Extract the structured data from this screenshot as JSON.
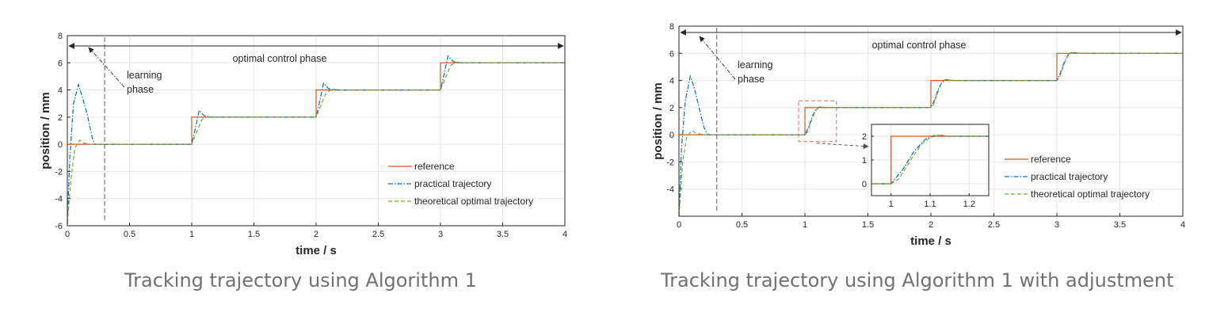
{
  "captions": {
    "left": "Tracking trajectory using Algorithm 1",
    "right": "Tracking trajectory using Algorithm 1 with adjustment"
  },
  "colors": {
    "reference": "#d95319",
    "practical": "#0072bd",
    "theoretical": "#77ac30",
    "axes": "#262626",
    "grid": "#e6e6e6",
    "zoom_box": "#e06666"
  },
  "chart_data": [
    {
      "type": "line",
      "title": "",
      "xlabel": "time / s",
      "ylabel": "position / mm",
      "xlim": [
        0,
        4
      ],
      "ylim": [
        -6,
        8
      ],
      "xticks": [
        "0",
        "0.5",
        "1",
        "1.5",
        "2",
        "2.5",
        "3",
        "3.5",
        "4"
      ],
      "yticks": [
        "-6",
        "-4",
        "-2",
        "0",
        "2",
        "4",
        "6",
        "8"
      ],
      "grid": true,
      "legend_position": "bottom-right",
      "annotations": {
        "learning_1": "learning",
        "learning_2": "phase",
        "optimal": "optimal control phase",
        "phase_boundary_time": 0.3
      },
      "series": [
        {
          "name": "reference",
          "style": "solid",
          "x": [
            0,
            1,
            1,
            2,
            2,
            3,
            3,
            4
          ],
          "y": [
            0,
            0,
            2,
            2,
            4,
            4,
            6,
            6
          ]
        },
        {
          "name": "practical trajectory",
          "style": "dashdot",
          "x": [
            0,
            0.02,
            0.05,
            0.09,
            0.12,
            0.16,
            0.2,
            0.22,
            0.3,
            1.0,
            1.03,
            1.06,
            1.1,
            1.15,
            2.0,
            2.03,
            2.06,
            2.1,
            2.15,
            3.0,
            3.03,
            3.06,
            3.1,
            3.15,
            4.0
          ],
          "y": [
            -5.8,
            -1.0,
            3.0,
            4.4,
            3.5,
            2.2,
            0.5,
            0.0,
            0.0,
            0.0,
            1.2,
            2.5,
            2.1,
            2.0,
            2.0,
            3.2,
            4.5,
            4.1,
            4.0,
            4.0,
            5.2,
            6.5,
            6.1,
            6.0,
            6.0
          ]
        },
        {
          "name": "theoretical optimal trajectory",
          "style": "dashed",
          "x": [
            0,
            0.03,
            0.06,
            0.1,
            0.13,
            0.18,
            0.25,
            0.3,
            1.0,
            1.04,
            1.08,
            1.13,
            1.2,
            2.0,
            2.04,
            2.08,
            2.13,
            2.2,
            3.0,
            3.04,
            3.08,
            3.13,
            3.2,
            4.0
          ],
          "y": [
            -5.8,
            -2.5,
            -0.3,
            0.3,
            0.1,
            0.0,
            0.0,
            0.0,
            0.0,
            0.9,
            1.8,
            2.05,
            2.0,
            2.0,
            2.9,
            3.8,
            4.05,
            4.0,
            4.0,
            4.9,
            5.8,
            6.05,
            6.0,
            6.0
          ]
        }
      ]
    },
    {
      "type": "line",
      "title": "",
      "xlabel": "time / s",
      "ylabel": "position / mm",
      "xlim": [
        0,
        4
      ],
      "ylim": [
        -6,
        8
      ],
      "xticks": [
        "0",
        "0.5",
        "1",
        "1.5",
        "2",
        "2.5",
        "3",
        "3.5",
        "4"
      ],
      "yticks": [
        "-4",
        "-2",
        "0",
        "2",
        "4",
        "6",
        "8"
      ],
      "grid": true,
      "legend_position": "bottom-right",
      "annotations": {
        "learning_1": "learning",
        "learning_2": "phase",
        "optimal": "optimal control phase",
        "phase_boundary_time": 0.3
      },
      "zoom_region": {
        "xlim": [
          0.95,
          1.25
        ],
        "ylim": [
          -0.5,
          2.5
        ]
      },
      "series": [
        {
          "name": "reference",
          "style": "solid",
          "x": [
            0,
            1,
            1,
            2,
            2,
            3,
            3,
            4
          ],
          "y": [
            0,
            0,
            2,
            2,
            4,
            4,
            6,
            6
          ]
        },
        {
          "name": "practical trajectory",
          "style": "dashdot",
          "x": [
            0,
            0.02,
            0.05,
            0.09,
            0.12,
            0.16,
            0.2,
            0.23,
            0.3,
            1.0,
            1.03,
            1.06,
            1.09,
            1.12,
            1.2,
            2.0,
            2.03,
            2.06,
            2.09,
            2.12,
            2.2,
            3.0,
            3.03,
            3.06,
            3.09,
            3.12,
            3.2,
            4.0
          ],
          "y": [
            -6.0,
            -1.0,
            2.5,
            4.3,
            3.5,
            2.0,
            0.5,
            0.0,
            0.0,
            0.0,
            0.6,
            1.4,
            1.9,
            2.05,
            2.0,
            2.0,
            2.6,
            3.4,
            3.9,
            4.05,
            4.0,
            4.0,
            4.6,
            5.4,
            5.9,
            6.05,
            6.0,
            6.0
          ]
        },
        {
          "name": "theoretical optimal trajectory",
          "style": "dashed",
          "x": [
            0,
            0.03,
            0.06,
            0.1,
            0.14,
            0.2,
            0.3,
            1.0,
            1.02,
            1.05,
            1.08,
            1.11,
            1.2,
            2.0,
            2.02,
            2.05,
            2.08,
            2.11,
            2.2,
            3.0,
            3.02,
            3.05,
            3.08,
            3.11,
            3.2,
            4.0
          ],
          "y": [
            -6.0,
            -2.0,
            -0.2,
            0.3,
            0.1,
            0.0,
            0.0,
            0.0,
            0.2,
            1.0,
            1.7,
            2.05,
            2.0,
            2.0,
            2.2,
            3.0,
            3.7,
            4.05,
            4.0,
            4.0,
            4.2,
            5.0,
            5.7,
            6.05,
            6.0,
            6.0
          ]
        }
      ],
      "inset": {
        "xlim": [
          0.95,
          1.25
        ],
        "ylim": [
          -0.5,
          2.5
        ],
        "xticks": [
          "1",
          "1.1",
          "1.2"
        ],
        "yticks": [
          "0",
          "1",
          "2"
        ],
        "series": [
          {
            "name": "reference",
            "style": "solid",
            "x": [
              0.95,
              1.0,
              1.0,
              1.25
            ],
            "y": [
              0,
              0,
              2,
              2
            ]
          },
          {
            "name": "practical trajectory",
            "style": "dashdot",
            "x": [
              0.95,
              1.0,
              1.03,
              1.06,
              1.09,
              1.12,
              1.15,
              1.25
            ],
            "y": [
              0,
              0,
              0.6,
              1.4,
              1.9,
              2.05,
              2.0,
              2.0
            ]
          },
          {
            "name": "theoretical optimal trajectory",
            "style": "dashed",
            "x": [
              0.95,
              1.0,
              1.02,
              1.05,
              1.08,
              1.11,
              1.15,
              1.25
            ],
            "y": [
              0,
              0,
              0.2,
              1.0,
              1.7,
              2.05,
              2.0,
              2.0
            ]
          }
        ]
      }
    }
  ]
}
